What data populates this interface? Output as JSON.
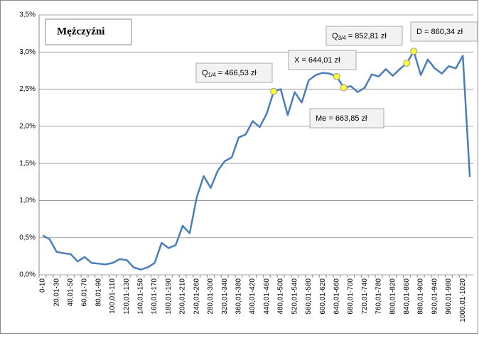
{
  "chart_data": {
    "type": "line",
    "title": "Mężczyźni",
    "categories": [
      "0-10",
      null,
      "20,01-30",
      null,
      "40,01-50",
      null,
      "60,01-70",
      null,
      "80,01-90",
      null,
      "100,01-110",
      null,
      "120,01-130",
      null,
      "140,01-150",
      null,
      "160,01-170",
      null,
      "180,01-190",
      null,
      "200,01-210",
      null,
      "240,01-260",
      null,
      "280,01-300",
      null,
      "320,01-340",
      null,
      "360,01-380",
      null,
      "400,01-420",
      null,
      "440,01-460",
      null,
      "480,01-500",
      null,
      "520,01-540",
      null,
      "560,01-580",
      null,
      "600,01-620",
      null,
      "640,01-660",
      null,
      "680,01-700",
      null,
      "720,01-740",
      null,
      "760,01-780",
      null,
      "800,01-820",
      null,
      "840,01-860",
      null,
      "880,01-900",
      null,
      "920,01-940",
      null,
      "960,01-980",
      null,
      "1000,01-1020",
      null
    ],
    "series": [
      {
        "color": "#4a7ebb",
        "values": [
          0.53,
          0.48,
          0.31,
          0.29,
          0.28,
          0.18,
          0.24,
          0.16,
          0.15,
          0.14,
          0.16,
          0.21,
          0.2,
          0.1,
          0.07,
          0.1,
          0.16,
          0.43,
          0.36,
          0.4,
          0.66,
          0.56,
          1.04,
          1.33,
          1.17,
          1.4,
          1.53,
          1.58,
          1.85,
          1.89,
          2.07,
          1.99,
          2.17,
          2.47,
          2.5,
          2.15,
          2.46,
          2.32,
          2.62,
          2.69,
          2.72,
          2.71,
          2.67,
          2.52,
          2.54,
          2.46,
          2.52,
          2.7,
          2.67,
          2.77,
          2.68,
          2.77,
          2.85,
          3.01,
          2.69,
          2.9,
          2.78,
          2.71,
          2.81,
          2.78,
          2.95,
          1.32
        ]
      }
    ],
    "ylim": [
      0,
      3.5
    ],
    "yticks": [
      {
        "value": 0,
        "label": "0,0%"
      },
      {
        "value": 0.5,
        "label": "0,5%"
      },
      {
        "value": 1,
        "label": "1,0%"
      },
      {
        "value": 1.5,
        "label": "1,5%"
      },
      {
        "value": 2,
        "label": "2,0%"
      },
      {
        "value": 2.5,
        "label": "2,5%"
      },
      {
        "value": 3,
        "label": "3,0%"
      },
      {
        "value": 3.5,
        "label": "3,5%"
      }
    ],
    "grid": true,
    "marker_color": "#ffff33",
    "annotations": [
      {
        "index": 33,
        "prefix": "Q",
        "subscript": "1/4",
        "text": " = 466,53 zł"
      },
      {
        "index": 42,
        "text": "X = 644,01 zł"
      },
      {
        "index": 43,
        "text": "Me = 663,85 zł"
      },
      {
        "index": 52,
        "prefix": "Q",
        "subscript": "3/4",
        "text": " = 852,81 zł"
      },
      {
        "index": 53,
        "text": "D = 860,34 zł"
      }
    ]
  }
}
